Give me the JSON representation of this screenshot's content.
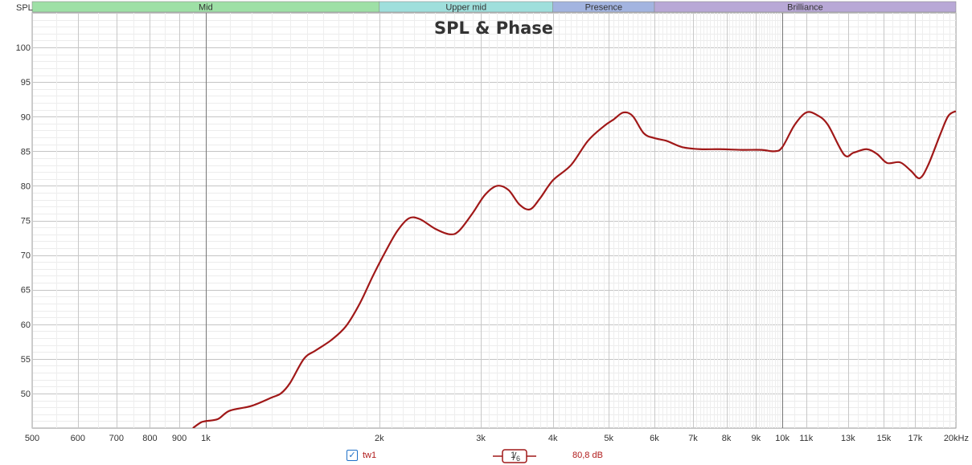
{
  "chart_data": {
    "type": "line",
    "title": "SPL & Phase",
    "ylabel": "SPL",
    "xlabel_unit": "kHz",
    "x_scale": "log",
    "xlim": [
      500,
      20000
    ],
    "ylim": [
      45,
      105
    ],
    "grid": true,
    "y_ticks": [
      50,
      55,
      60,
      65,
      70,
      75,
      80,
      85,
      90,
      95,
      100
    ],
    "x_ticks": [
      {
        "value": 500,
        "label": "500"
      },
      {
        "value": 600,
        "label": "600"
      },
      {
        "value": 700,
        "label": "700"
      },
      {
        "value": 800,
        "label": "800"
      },
      {
        "value": 900,
        "label": "900"
      },
      {
        "value": 1000,
        "label": "1k"
      },
      {
        "value": 2000,
        "label": "2k"
      },
      {
        "value": 3000,
        "label": "3k"
      },
      {
        "value": 4000,
        "label": "4k"
      },
      {
        "value": 5000,
        "label": "5k"
      },
      {
        "value": 6000,
        "label": "6k"
      },
      {
        "value": 7000,
        "label": "7k"
      },
      {
        "value": 8000,
        "label": "8k"
      },
      {
        "value": 9000,
        "label": "9k"
      },
      {
        "value": 10000,
        "label": "10k"
      },
      {
        "value": 11000,
        "label": "11k"
      },
      {
        "value": 13000,
        "label": "13k"
      },
      {
        "value": 15000,
        "label": "15k"
      },
      {
        "value": 17000,
        "label": "17k"
      },
      {
        "value": 20000,
        "label": "20kHz"
      }
    ],
    "bands": [
      {
        "label": "Mid",
        "from": 500,
        "to": 2000,
        "color": "#9ee0a6"
      },
      {
        "label": "Upper mid",
        "from": 2000,
        "to": 4000,
        "color": "#9fdfdc"
      },
      {
        "label": "Presence",
        "from": 4000,
        "to": 6000,
        "color": "#a3b4e0"
      },
      {
        "label": "Brilliance",
        "from": 6000,
        "to": 20000,
        "color": "#b8a8d6"
      }
    ],
    "series": [
      {
        "name": "tw1",
        "color": "#a01818",
        "points": [
          [
            950,
            45.0
          ],
          [
            980,
            45.8
          ],
          [
            1000,
            46.0
          ],
          [
            1050,
            46.3
          ],
          [
            1100,
            47.5
          ],
          [
            1200,
            48.2
          ],
          [
            1300,
            49.4
          ],
          [
            1350,
            50.0
          ],
          [
            1400,
            51.5
          ],
          [
            1480,
            55.0
          ],
          [
            1550,
            56.2
          ],
          [
            1650,
            57.7
          ],
          [
            1750,
            59.7
          ],
          [
            1850,
            63.0
          ],
          [
            1950,
            67.0
          ],
          [
            2050,
            70.5
          ],
          [
            2150,
            73.5
          ],
          [
            2250,
            75.3
          ],
          [
            2350,
            75.2
          ],
          [
            2500,
            73.8
          ],
          [
            2650,
            73.0
          ],
          [
            2750,
            73.5
          ],
          [
            2900,
            76.0
          ],
          [
            3050,
            78.7
          ],
          [
            3200,
            80.0
          ],
          [
            3350,
            79.4
          ],
          [
            3500,
            77.3
          ],
          [
            3650,
            76.6
          ],
          [
            3800,
            78.2
          ],
          [
            4000,
            80.8
          ],
          [
            4300,
            83.0
          ],
          [
            4600,
            86.5
          ],
          [
            4900,
            88.6
          ],
          [
            5100,
            89.6
          ],
          [
            5300,
            90.6
          ],
          [
            5500,
            90.1
          ],
          [
            5750,
            87.6
          ],
          [
            6000,
            86.9
          ],
          [
            6300,
            86.5
          ],
          [
            6700,
            85.6
          ],
          [
            7200,
            85.3
          ],
          [
            7800,
            85.3
          ],
          [
            8500,
            85.2
          ],
          [
            9200,
            85.2
          ],
          [
            9700,
            85.0
          ],
          [
            10000,
            85.6
          ],
          [
            10500,
            88.8
          ],
          [
            11000,
            90.6
          ],
          [
            11500,
            90.2
          ],
          [
            12000,
            88.8
          ],
          [
            12800,
            84.5
          ],
          [
            13300,
            84.8
          ],
          [
            14000,
            85.3
          ],
          [
            14600,
            84.6
          ],
          [
            15200,
            83.3
          ],
          [
            16000,
            83.4
          ],
          [
            16700,
            82.2
          ],
          [
            17300,
            81.1
          ],
          [
            17900,
            83.0
          ],
          [
            18800,
            87.5
          ],
          [
            19400,
            90.1
          ],
          [
            20000,
            90.8
          ]
        ]
      }
    ]
  },
  "legend": {
    "checkbox_checked": true,
    "series_name": "tw1",
    "smoothing_label": "1/6",
    "smoothing_num": "1",
    "smoothing_den": "6",
    "level": "80,8 dB"
  }
}
